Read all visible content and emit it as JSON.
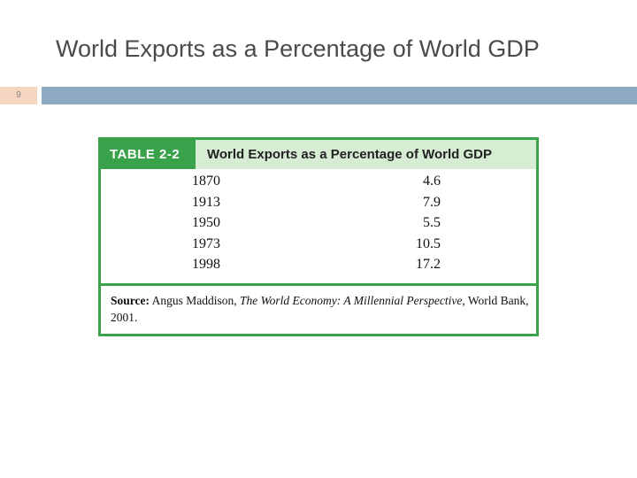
{
  "slide": {
    "title": "World Exports as a Percentage of World GDP",
    "page_number": "9"
  },
  "table": {
    "label": "TABLE 2-2",
    "title": "World Exports as a Percentage of World GDP",
    "rows": [
      {
        "year": "1870",
        "value": "4.6"
      },
      {
        "year": "1913",
        "value": "7.9"
      },
      {
        "year": "1950",
        "value": "5.5"
      },
      {
        "year": "1973",
        "value": "10.5"
      },
      {
        "year": "1998",
        "value": "17.2"
      }
    ],
    "source": {
      "label": "Source:",
      "author": " Angus Maddison, ",
      "work": "The World Economy: A Millennial Perspective",
      "rest": ", World Bank, 2001."
    }
  },
  "colors": {
    "accent_green": "#3aa24a",
    "header_green_light": "#d6ecd3",
    "title_bar_blue": "#8fa9c4",
    "page_number_bg": "#f5d5c0"
  }
}
